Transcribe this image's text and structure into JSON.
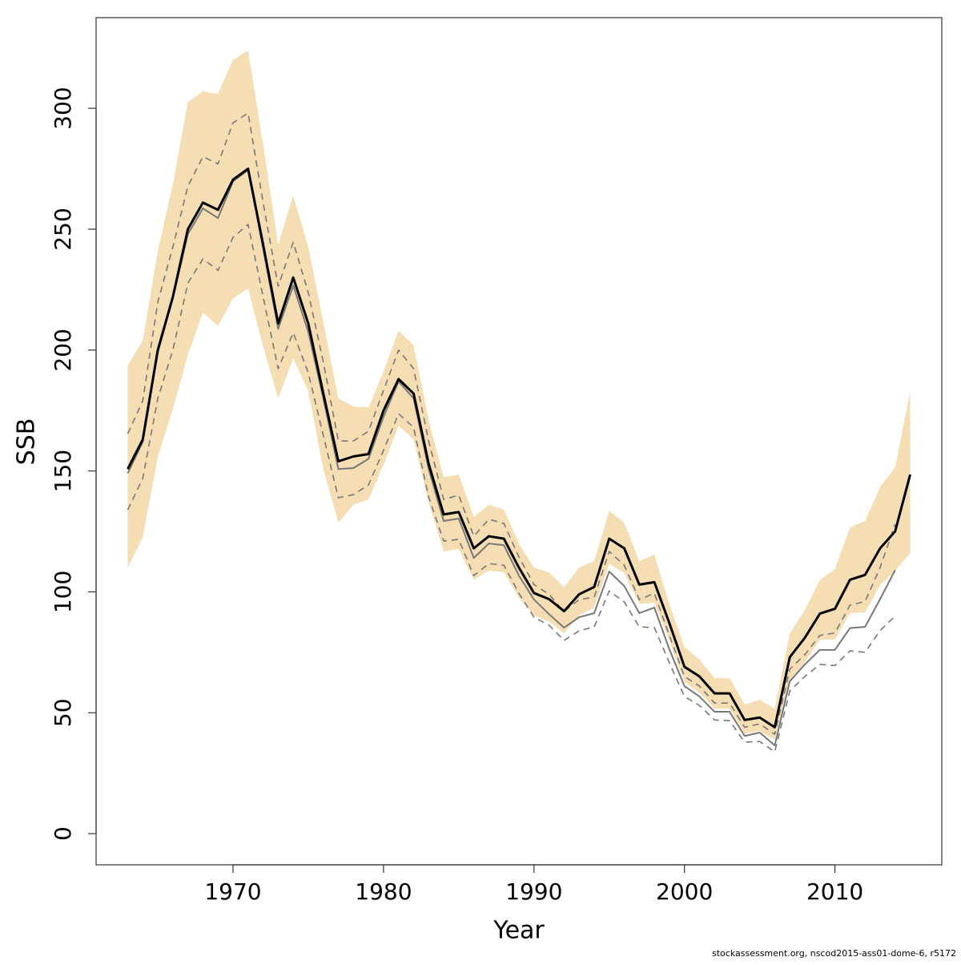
{
  "chart_data": {
    "type": "line",
    "x_label": "Year",
    "y_label": "SSB",
    "footer": "stockassessment.org, nscod2015-ass01-dome-6, r5172",
    "x": [
      1963,
      1964,
      1965,
      1966,
      1967,
      1968,
      1969,
      1970,
      1971,
      1972,
      1973,
      1974,
      1975,
      1976,
      1977,
      1978,
      1979,
      1980,
      1981,
      1982,
      1983,
      1984,
      1985,
      1986,
      1987,
      1988,
      1989,
      1990,
      1991,
      1992,
      1993,
      1994,
      1995,
      1996,
      1997,
      1998,
      1999,
      2000,
      2001,
      2002,
      2003,
      2004,
      2005,
      2006,
      2007,
      2008,
      2009,
      2010,
      2011,
      2012,
      2013,
      2014,
      2015
    ],
    "band": {
      "color": "#f5deb3",
      "upper": [
        193.6,
        204,
        241,
        268.5,
        302.6,
        307,
        306,
        320,
        324,
        285,
        243.6,
        264,
        242.6,
        211.5,
        180,
        176.7,
        176.3,
        191,
        208,
        202,
        171,
        147.5,
        148.5,
        131,
        136,
        134,
        120,
        110,
        108,
        102,
        110,
        112.7,
        133.6,
        128.6,
        112.7,
        115.4,
        94.8,
        77.2,
        72,
        64.3,
        64.3,
        53.4,
        55.4,
        51.7,
        82.9,
        92.5,
        105,
        109.4,
        126.6,
        129.3,
        143.5,
        151.5,
        183
      ],
      "lower": [
        110,
        122.6,
        155.8,
        175.7,
        198,
        215.5,
        210,
        221.4,
        225.4,
        201.5,
        180,
        196.6,
        183,
        150.8,
        128.6,
        136,
        138.2,
        152.5,
        168.7,
        163,
        137,
        116.7,
        117.7,
        105,
        108.7,
        108,
        97.5,
        90.2,
        87.8,
        82.9,
        90.2,
        93.5,
        111.7,
        107.7,
        95,
        95.5,
        79.9,
        62.7,
        58.3,
        51.7,
        51.7,
        41.4,
        42.4,
        38.8,
        63.6,
        70.9,
        80.2,
        80.2,
        91.2,
        91.5,
        102.8,
        108.7,
        116
      ]
    },
    "series": [
      {
        "color": "#777777",
        "width": 1.6,
        "dashed": true,
        "values": [
          165.4,
          179,
          219.8,
          242.6,
          267.8,
          280,
          277,
          294,
          298,
          261,
          226.4,
          244.6,
          223.8,
          195,
          162.4,
          162.4,
          166.4,
          183.3,
          200,
          192.3,
          162.4,
          138.2,
          140,
          123,
          130,
          128.3,
          114.4,
          103,
          99,
          91.8,
          96.8,
          97.8,
          116.7,
          111,
          96.8,
          99.4,
          81.9,
          65,
          61,
          54,
          54,
          44,
          45.4,
          41.1,
          68,
          74,
          82,
          83,
          94.5,
          96,
          110,
          128,
          null
        ]
      },
      {
        "color": "#777777",
        "width": 1.6,
        "dashed": true,
        "values": [
          133.9,
          146.9,
          180,
          200,
          227.7,
          237.7,
          233,
          246.6,
          252,
          222,
          192.3,
          207.2,
          190.6,
          164.7,
          138.9,
          140.2,
          144.2,
          158.5,
          173.7,
          168,
          139.2,
          121,
          121.7,
          106.7,
          111.7,
          111,
          99.4,
          89.5,
          86.2,
          79.9,
          83.9,
          85.5,
          100.4,
          95.8,
          85.5,
          85.2,
          70.6,
          56.7,
          53,
          47,
          46.7,
          37.8,
          38.1,
          33.8,
          59,
          65,
          70,
          69.5,
          75.6,
          75,
          84,
          90,
          null
        ]
      },
      {
        "color": "#777777",
        "width": 2,
        "dashed": false,
        "values": [
          149,
          162,
          199,
          221.4,
          248,
          258.6,
          254.6,
          269.8,
          274.5,
          242,
          208.8,
          226.7,
          207.5,
          180,
          150.8,
          151.2,
          155,
          172.4,
          187,
          180,
          150.8,
          129.3,
          130.3,
          114,
          120,
          119.3,
          106.7,
          96.8,
          90.8,
          85.2,
          89.5,
          91.2,
          108.4,
          102.4,
          91.2,
          93.5,
          76.2,
          61,
          56.7,
          50.4,
          50.4,
          40.4,
          41.8,
          36.5,
          63,
          70,
          76,
          76,
          85,
          85.5,
          97,
          109,
          null
        ]
      },
      {
        "color": "#000000",
        "width": 3,
        "dashed": false,
        "values": [
          150.8,
          163,
          200,
          222,
          250,
          261,
          258,
          270.5,
          275,
          243.6,
          211,
          230,
          211,
          182,
          154,
          156,
          157,
          175,
          188,
          182,
          153,
          132,
          133,
          118,
          123,
          122,
          110,
          99.5,
          97,
          92,
          99,
          102,
          122,
          118,
          103,
          104,
          87,
          69,
          65,
          58,
          58,
          47,
          48,
          44,
          73,
          81,
          91,
          93,
          105,
          107,
          118,
          125,
          148.5
        ]
      }
    ],
    "xlim": [
      1960.9,
      2017.1
    ],
    "ylim": [
      -12.9,
      337.5
    ],
    "xticks": [
      1970,
      1980,
      1990,
      2000,
      2010
    ],
    "yticks": [
      0,
      50,
      100,
      150,
      200,
      250,
      300
    ]
  }
}
